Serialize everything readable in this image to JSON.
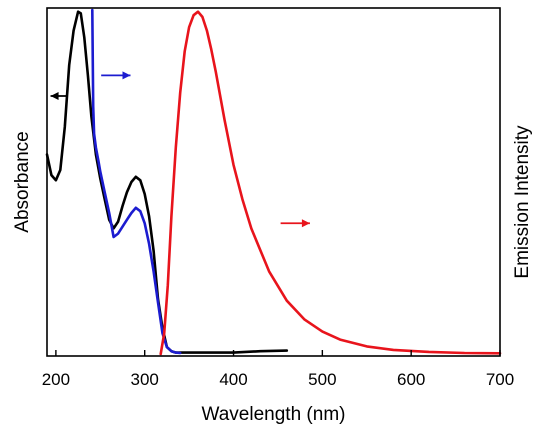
{
  "chart_data": {
    "type": "line",
    "title": "",
    "xlabel": "Wavelength (nm)",
    "ylabel_left": "Absorbance",
    "ylabel_right": "Emission Intensity",
    "xlim": [
      190,
      700
    ],
    "ylim": [
      0,
      1.0
    ],
    "x_ticks": [
      "200",
      "300",
      "400",
      "500",
      "600",
      "700"
    ],
    "grid": false,
    "series": [
      {
        "color": "#000000",
        "axis": "left",
        "arrow_direction": "left",
        "x": [
          190,
          195,
          200,
          205,
          210,
          215,
          220,
          225,
          228,
          232,
          236,
          240,
          245,
          250,
          255,
          260,
          265,
          270,
          275,
          280,
          285,
          290,
          295,
          300,
          305,
          310,
          315,
          320,
          325,
          330,
          335,
          340,
          350,
          400,
          430,
          460
        ],
        "y": [
          0.58,
          0.52,
          0.505,
          0.535,
          0.66,
          0.84,
          0.94,
          0.995,
          0.99,
          0.92,
          0.81,
          0.69,
          0.58,
          0.51,
          0.45,
          0.39,
          0.365,
          0.385,
          0.43,
          0.47,
          0.5,
          0.515,
          0.505,
          0.465,
          0.4,
          0.3,
          0.16,
          0.075,
          0.02,
          0.008,
          0.004,
          0.004,
          0.004,
          0.004,
          0.008,
          0.01
        ]
      },
      {
        "color": "#1c1cd0",
        "axis": "left",
        "arrow_direction": "right",
        "x": [
          241,
          242,
          243,
          245,
          248,
          250,
          255,
          260,
          265,
          270,
          275,
          280,
          285,
          290,
          295,
          300,
          305,
          310,
          315,
          320,
          325,
          330,
          335,
          340
        ],
        "y": [
          1.0,
          0.72,
          0.64,
          0.6,
          0.56,
          0.53,
          0.47,
          0.41,
          0.34,
          0.35,
          0.37,
          0.39,
          0.41,
          0.425,
          0.415,
          0.38,
          0.32,
          0.24,
          0.15,
          0.06,
          0.02,
          0.008,
          0.004,
          0.003
        ]
      },
      {
        "color": "#e8141c",
        "axis": "right",
        "arrow_direction": "right",
        "x": [
          318,
          322,
          326,
          330,
          335,
          340,
          345,
          350,
          355,
          360,
          365,
          370,
          375,
          380,
          390,
          400,
          410,
          420,
          440,
          460,
          480,
          500,
          520,
          550,
          580,
          620,
          660,
          700
        ],
        "y": [
          0.0,
          0.06,
          0.2,
          0.4,
          0.6,
          0.76,
          0.88,
          0.95,
          0.985,
          0.995,
          0.98,
          0.94,
          0.885,
          0.82,
          0.68,
          0.55,
          0.45,
          0.365,
          0.24,
          0.155,
          0.1,
          0.065,
          0.042,
          0.022,
          0.012,
          0.006,
          0.003,
          0.002
        ]
      }
    ],
    "annotations": [
      {
        "type": "arrow",
        "color": "#000000",
        "direction": "left",
        "x_from": 212,
        "x_to": 194,
        "y": 0.75
      },
      {
        "type": "arrow",
        "color": "#1c1cd0",
        "direction": "right",
        "x_from": 251,
        "x_to": 284,
        "y": 0.81
      },
      {
        "type": "arrow",
        "color": "#e8141c",
        "direction": "right",
        "x_from": 453,
        "x_to": 486,
        "y": 0.38
      }
    ]
  }
}
